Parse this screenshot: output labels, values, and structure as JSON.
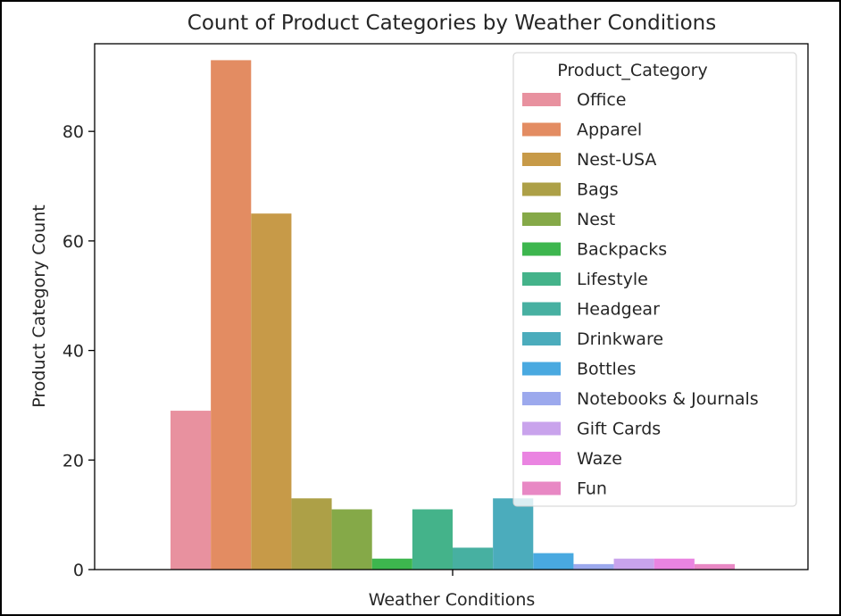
{
  "chart_data": {
    "type": "bar",
    "title": "Count of Product Categories by Weather Conditions",
    "xlabel": "Weather Conditions",
    "ylabel": "Product Category Count",
    "ylim": [
      0,
      96
    ],
    "yticks": [
      0,
      20,
      40,
      60,
      80
    ],
    "grid": false,
    "legend": {
      "title": "Product_Category",
      "placement": "top-right"
    },
    "series": [
      {
        "name": "Office",
        "value": 29,
        "color": "#e8919f"
      },
      {
        "name": "Apparel",
        "value": 93,
        "color": "#e38c62"
      },
      {
        "name": "Nest-USA",
        "value": 65,
        "color": "#c79a48"
      },
      {
        "name": "Bags",
        "value": 13,
        "color": "#ada047"
      },
      {
        "name": "Nest",
        "value": 11,
        "color": "#85a948"
      },
      {
        "name": "Backpacks",
        "value": 2,
        "color": "#3db64e"
      },
      {
        "name": "Lifestyle",
        "value": 11,
        "color": "#44b38a"
      },
      {
        "name": "Headgear",
        "value": 4,
        "color": "#47b0a1"
      },
      {
        "name": "Drinkware",
        "value": 13,
        "color": "#4bacbc"
      },
      {
        "name": "Bottles",
        "value": 3,
        "color": "#49a9e0"
      },
      {
        "name": "Notebooks & Journals",
        "value": 1,
        "color": "#9ca9ed"
      },
      {
        "name": "Gift Cards",
        "value": 2,
        "color": "#c9a3ec"
      },
      {
        "name": "Waze",
        "value": 2,
        "color": "#ea84e1"
      },
      {
        "name": "Fun",
        "value": 1,
        "color": "#e888c4"
      }
    ]
  }
}
